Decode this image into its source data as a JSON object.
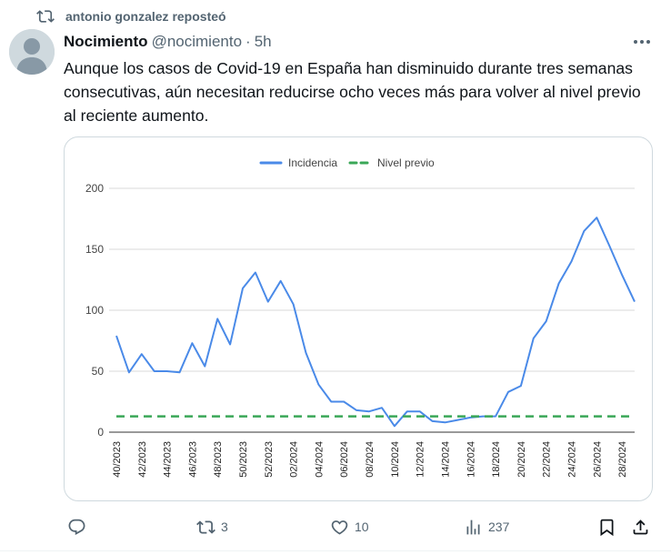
{
  "repost": {
    "text": "antonio gonzalez reposteó",
    "icon": "repost-icon"
  },
  "tweet": {
    "author_name": "Nocimiento",
    "handle": "@nocimiento",
    "dot": "·",
    "time": "5h",
    "text": "Aunque los casos de Covid-19 en España han disminuido durante tres semanas consecutivas, aún necesitan reducirse ocho veces más para volver al nivel previo al reciente aumento."
  },
  "actions": {
    "reply_count": "",
    "repost_count": "3",
    "like_count": "10",
    "views_count": "237"
  },
  "colors": {
    "line": "#4a8ae8",
    "dashed": "#3aa757",
    "muted": "#536471"
  },
  "chart_data": {
    "type": "line",
    "title": "",
    "xlabel": "",
    "ylabel": "",
    "ylim": [
      0,
      200
    ],
    "yticks": [
      "0",
      "50",
      "100",
      "150",
      "200"
    ],
    "legend_position": "top",
    "x": [
      "40/2023",
      "41/2023",
      "42/2023",
      "43/2023",
      "44/2023",
      "45/2023",
      "46/2023",
      "47/2023",
      "48/2023",
      "49/2023",
      "50/2023",
      "51/2023",
      "52/2023",
      "01/2024",
      "02/2024",
      "03/2024",
      "04/2024",
      "05/2024",
      "06/2024",
      "07/2024",
      "08/2024",
      "09/2024",
      "10/2024",
      "11/2024",
      "12/2024",
      "13/2024",
      "14/2024",
      "15/2024",
      "16/2024",
      "17/2024",
      "18/2024",
      "19/2024",
      "20/2024",
      "21/2024",
      "22/2024",
      "23/2024",
      "24/2024",
      "25/2024",
      "26/2024",
      "27/2024",
      "28/2024",
      "29/2024"
    ],
    "xtick_labels": [
      "40/2023",
      "42/2023",
      "44/2023",
      "46/2023",
      "48/2023",
      "50/2023",
      "52/2023",
      "02/2024",
      "04/2024",
      "06/2024",
      "08/2024",
      "10/2024",
      "12/2024",
      "14/2024",
      "16/2024",
      "18/2024",
      "20/2024",
      "22/2024",
      "24/2024",
      "26/2024",
      "28/2024"
    ],
    "series": [
      {
        "name": "Incidencia",
        "style": "solid",
        "values": [
          79,
          49,
          64,
          50,
          50,
          49,
          73,
          54,
          93,
          72,
          118,
          131,
          107,
          124,
          105,
          65,
          39,
          25,
          25,
          18,
          17,
          20,
          5,
          17,
          17,
          9,
          8,
          10,
          12,
          13,
          13,
          33,
          38,
          77,
          91,
          122,
          140,
          165,
          176,
          153,
          129,
          107
        ]
      },
      {
        "name": "Nivel previo",
        "style": "dashed",
        "values": [
          13,
          13,
          13,
          13,
          13,
          13,
          13,
          13,
          13,
          13,
          13,
          13,
          13,
          13,
          13,
          13,
          13,
          13,
          13,
          13,
          13,
          13,
          13,
          13,
          13,
          13,
          13,
          13,
          13,
          13,
          13,
          13,
          13,
          13,
          13,
          13,
          13,
          13,
          13,
          13,
          13,
          13
        ]
      }
    ]
  }
}
